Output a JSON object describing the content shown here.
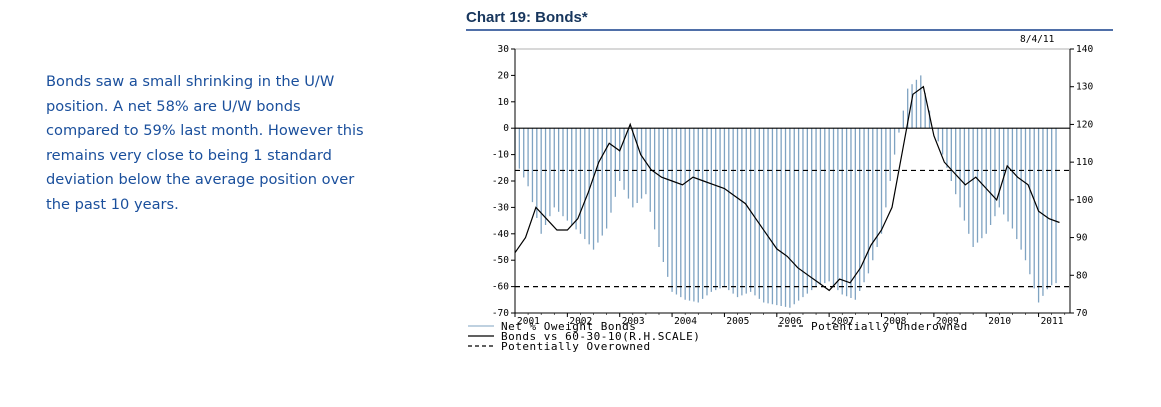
{
  "commentary": "Bonds saw a small shrinking in the U/W position. A net 58% are U/W bonds compared to 59% last month. However this remains very close to being 1 standard deviation below the average position over the past 10 years.",
  "chart_data": {
    "type": "bar+line",
    "title": "Chart 19: Bonds*",
    "date_label": "8/4/11",
    "x_tick_labels": [
      "2001",
      "2002",
      "2003",
      "2004",
      "2005",
      "2006",
      "2007",
      "2008",
      "2009",
      "2010",
      "2011"
    ],
    "x_range": [
      2001,
      2011.6
    ],
    "left_axis": {
      "ylim": [
        -70,
        30
      ],
      "ticks": [
        30,
        20,
        10,
        0,
        -10,
        -20,
        -30,
        -40,
        -50,
        -60,
        -70
      ]
    },
    "right_axis": {
      "ylim": [
        70,
        140
      ],
      "ticks": [
        140,
        130,
        120,
        110,
        100,
        90,
        80,
        70
      ],
      "label": "R.H.SCALE"
    },
    "grid": false,
    "legend_position": "bottom",
    "reference_lines": [
      {
        "name": "Potentially Overowned",
        "axis": "left",
        "value": -16,
        "style": "dashed",
        "color": "#000000"
      },
      {
        "name": "Potentially Underowned",
        "axis": "left",
        "value": -60,
        "style": "dashed",
        "color": "#000000"
      },
      {
        "name": "zero",
        "axis": "left",
        "value": 0,
        "style": "solid",
        "color": "#000000"
      }
    ],
    "series": [
      {
        "name": "Net % Oweight Bonds",
        "kind": "bar",
        "axis": "left",
        "color": "#7fa3c2",
        "points": [
          [
            2001.0,
            -12
          ],
          [
            2001.25,
            -22
          ],
          [
            2001.5,
            -40
          ],
          [
            2001.75,
            -30
          ],
          [
            2002.0,
            -35
          ],
          [
            2002.25,
            -40
          ],
          [
            2002.5,
            -46
          ],
          [
            2002.75,
            -38
          ],
          [
            2003.0,
            -20
          ],
          [
            2003.25,
            -30
          ],
          [
            2003.5,
            -25
          ],
          [
            2003.75,
            -45
          ],
          [
            2004.0,
            -62
          ],
          [
            2004.25,
            -65
          ],
          [
            2004.5,
            -66
          ],
          [
            2004.75,
            -62
          ],
          [
            2005.0,
            -60
          ],
          [
            2005.25,
            -64
          ],
          [
            2005.5,
            -62
          ],
          [
            2005.75,
            -66
          ],
          [
            2006.0,
            -67
          ],
          [
            2006.25,
            -68
          ],
          [
            2006.5,
            -64
          ],
          [
            2006.75,
            -60
          ],
          [
            2007.0,
            -58
          ],
          [
            2007.25,
            -63
          ],
          [
            2007.5,
            -65
          ],
          [
            2007.75,
            -55
          ],
          [
            2008.0,
            -40
          ],
          [
            2008.25,
            -10
          ],
          [
            2008.5,
            15
          ],
          [
            2008.75,
            20
          ],
          [
            2009.0,
            0
          ],
          [
            2009.25,
            -15
          ],
          [
            2009.5,
            -30
          ],
          [
            2009.75,
            -45
          ],
          [
            2010.0,
            -40
          ],
          [
            2010.25,
            -30
          ],
          [
            2010.5,
            -38
          ],
          [
            2010.75,
            -50
          ],
          [
            2011.0,
            -66
          ],
          [
            2011.2,
            -60
          ],
          [
            2011.4,
            -58
          ]
        ]
      },
      {
        "name": "Bonds vs 60-30-10(R.H.SCALE)",
        "kind": "line",
        "axis": "right",
        "color": "#000000",
        "points": [
          [
            2001.0,
            86
          ],
          [
            2001.2,
            90
          ],
          [
            2001.4,
            98
          ],
          [
            2001.6,
            95
          ],
          [
            2001.8,
            92
          ],
          [
            2002.0,
            92
          ],
          [
            2002.2,
            95
          ],
          [
            2002.4,
            102
          ],
          [
            2002.6,
            110
          ],
          [
            2002.8,
            115
          ],
          [
            2003.0,
            113
          ],
          [
            2003.2,
            120
          ],
          [
            2003.4,
            112
          ],
          [
            2003.6,
            108
          ],
          [
            2003.8,
            106
          ],
          [
            2004.0,
            105
          ],
          [
            2004.2,
            104
          ],
          [
            2004.4,
            106
          ],
          [
            2004.6,
            105
          ],
          [
            2004.8,
            104
          ],
          [
            2005.0,
            103
          ],
          [
            2005.2,
            101
          ],
          [
            2005.4,
            99
          ],
          [
            2005.6,
            95
          ],
          [
            2005.8,
            91
          ],
          [
            2006.0,
            87
          ],
          [
            2006.2,
            85
          ],
          [
            2006.4,
            82
          ],
          [
            2006.6,
            80
          ],
          [
            2006.8,
            78
          ],
          [
            2007.0,
            76
          ],
          [
            2007.2,
            79
          ],
          [
            2007.4,
            78
          ],
          [
            2007.6,
            82
          ],
          [
            2007.8,
            88
          ],
          [
            2008.0,
            92
          ],
          [
            2008.2,
            98
          ],
          [
            2008.4,
            113
          ],
          [
            2008.6,
            128
          ],
          [
            2008.8,
            130
          ],
          [
            2009.0,
            117
          ],
          [
            2009.2,
            110
          ],
          [
            2009.4,
            107
          ],
          [
            2009.6,
            104
          ],
          [
            2009.8,
            106
          ],
          [
            2010.0,
            103
          ],
          [
            2010.2,
            100
          ],
          [
            2010.4,
            109
          ],
          [
            2010.6,
            106
          ],
          [
            2010.8,
            104
          ],
          [
            2011.0,
            97
          ],
          [
            2011.2,
            95
          ],
          [
            2011.4,
            94
          ]
        ]
      }
    ],
    "legend": [
      {
        "label": "Net % Oweight Bonds",
        "swatch": "bar",
        "color": "#7fa3c2"
      },
      {
        "label": "Bonds vs 60-30-10(R.H.SCALE)",
        "swatch": "solid-line",
        "color": "#000000"
      },
      {
        "label": "Potentially Overowned",
        "swatch": "dashed-line",
        "color": "#000000"
      },
      {
        "label": "Potentially Underowned",
        "swatch": "dashed-line",
        "color": "#000000"
      }
    ]
  }
}
